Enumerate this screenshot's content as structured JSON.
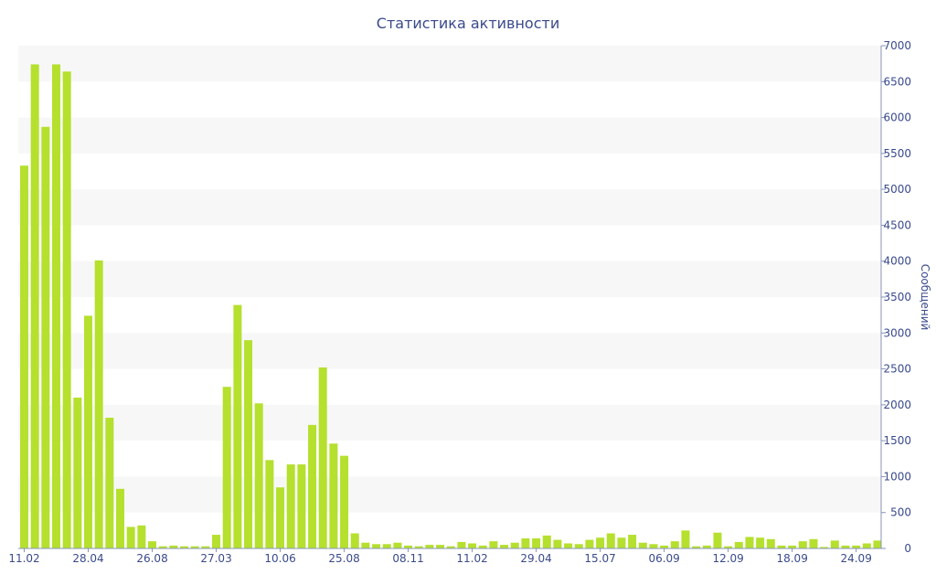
{
  "chart_data": {
    "type": "bar",
    "title": "Статистика активности",
    "xlabel": "",
    "ylabel": "Сообщений",
    "ylim": [
      0,
      7000
    ],
    "y_axis_position": "right",
    "y_ticks": [
      0,
      500,
      1000,
      1500,
      2000,
      2500,
      3000,
      3500,
      4000,
      4500,
      5000,
      5500,
      6000,
      6500,
      7000
    ],
    "x_tick_labels": [
      {
        "label": "11.02",
        "index": 0
      },
      {
        "label": "28.04",
        "index": 6
      },
      {
        "label": "26.08",
        "index": 12
      },
      {
        "label": "27.03",
        "index": 18
      },
      {
        "label": "10.06",
        "index": 24
      },
      {
        "label": "25.08",
        "index": 30
      },
      {
        "label": "08.11",
        "index": 36
      },
      {
        "label": "11.02",
        "index": 42
      },
      {
        "label": "29.04",
        "index": 48
      },
      {
        "label": "15.07",
        "index": 54
      },
      {
        "label": "06.09",
        "index": 60
      },
      {
        "label": "12.09",
        "index": 66
      },
      {
        "label": "18.09",
        "index": 72
      },
      {
        "label": "24.09",
        "index": 78
      }
    ],
    "grid": true,
    "bar_color": "#b5e02e",
    "values": [
      5330,
      6740,
      5870,
      6740,
      6640,
      2100,
      3240,
      4010,
      1820,
      830,
      300,
      320,
      100,
      30,
      40,
      30,
      30,
      30,
      190,
      2250,
      3390,
      2900,
      2020,
      1230,
      850,
      1170,
      1170,
      1720,
      2520,
      1460,
      1290,
      210,
      80,
      60,
      60,
      80,
      40,
      30,
      50,
      50,
      30,
      90,
      70,
      40,
      100,
      50,
      80,
      140,
      140,
      180,
      120,
      70,
      60,
      120,
      150,
      210,
      150,
      190,
      80,
      60,
      40,
      100,
      250,
      30,
      40,
      220,
      30,
      90,
      160,
      150,
      130,
      40,
      40,
      100,
      130,
      20,
      110,
      40,
      40,
      70,
      110
    ]
  }
}
